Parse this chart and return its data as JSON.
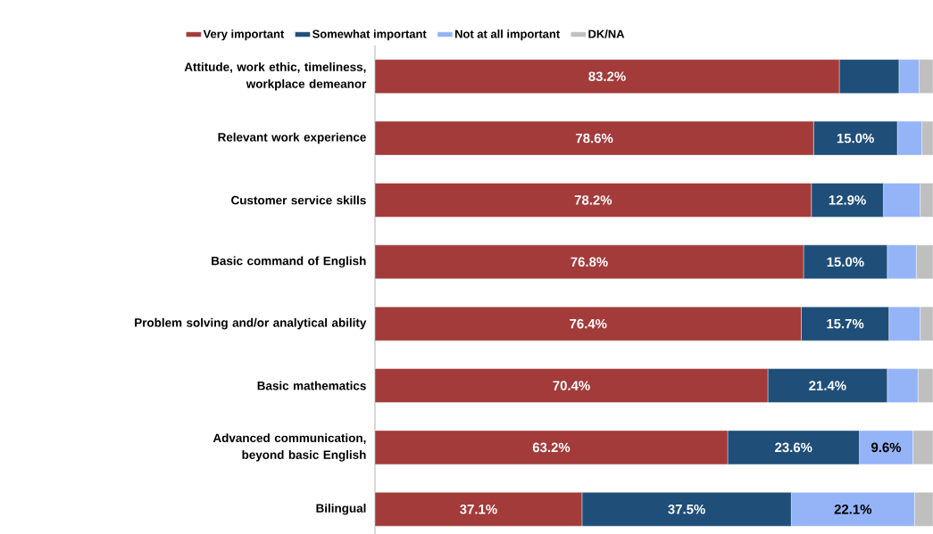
{
  "chart_data": {
    "type": "bar",
    "orientation": "horizontal",
    "stacked": true,
    "legend": "top",
    "categories": [
      "Attitude, work ethic, timeliness, workplace demeanor",
      "Relevant work experience",
      "Customer service skills",
      "Basic command of English",
      "Problem solving and/or analytical ability",
      "Basic mathematics",
      "Advanced communication, beyond basic English",
      "Bilingual"
    ],
    "series": [
      {
        "name": "Very important",
        "color": "#a33b3b",
        "values": [
          83.2,
          78.6,
          78.2,
          76.8,
          76.4,
          70.4,
          63.2,
          37.1
        ],
        "value_labels": [
          "83.2%",
          "78.6%",
          "78.2%",
          "76.8%",
          "76.4%",
          "70.4%",
          "63.2%",
          "37.1%"
        ]
      },
      {
        "name": "Somewhat important",
        "color": "#1f4e79",
        "values": [
          10.7,
          15.0,
          12.9,
          15.0,
          15.7,
          21.4,
          23.6,
          37.5
        ],
        "value_labels": [
          null,
          "15.0%",
          "12.9%",
          "15.0%",
          "15.7%",
          "21.4%",
          "23.6%",
          "37.5%"
        ]
      },
      {
        "name": "Not at all important",
        "color": "#95b3f7",
        "values": [
          3.6,
          4.4,
          6.6,
          5.2,
          5.6,
          5.5,
          9.6,
          22.1
        ],
        "value_labels": [
          null,
          null,
          null,
          null,
          null,
          null,
          "9.6%",
          "22.1%"
        ]
      },
      {
        "name": "DK/NA",
        "color": "#bfbfbf",
        "values": [
          2.5,
          2.0,
          2.3,
          3.0,
          2.3,
          2.7,
          3.6,
          3.3
        ]
      }
    ]
  }
}
